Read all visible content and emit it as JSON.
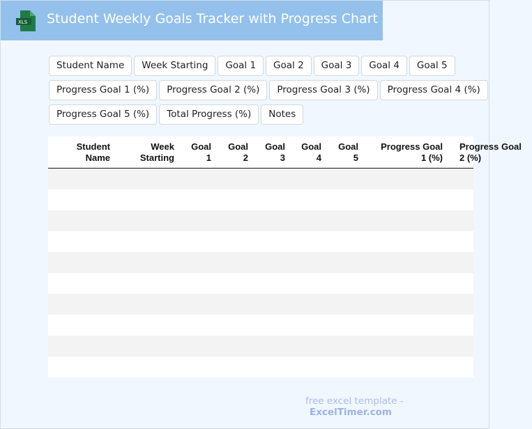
{
  "header": {
    "title": "Student Weekly Goals Tracker with Progress Chart",
    "logo_text": "XLS",
    "brand_color": "#93c1ec"
  },
  "fields": [
    "Student Name",
    "Week Starting",
    "Goal 1",
    "Goal 2",
    "Goal 3",
    "Goal 4",
    "Goal 5",
    "Progress Goal 1 (%)",
    "Progress Goal 2 (%)",
    "Progress Goal 3 (%)",
    "Progress Goal 4 (%)",
    "Progress Goal 5 (%)",
    "Total Progress (%)",
    "Notes"
  ],
  "table": {
    "columns": [
      [
        "Student",
        "Name"
      ],
      [
        "Week",
        "Starting"
      ],
      [
        "Goal",
        "1"
      ],
      [
        "Goal",
        "2"
      ],
      [
        "Goal",
        "3"
      ],
      [
        "Goal",
        "4"
      ],
      [
        "Goal",
        "5"
      ],
      [
        "Progress Goal",
        "1 (%)"
      ],
      [
        "Progress Goal",
        "2 (%)"
      ]
    ],
    "row_count": 10
  },
  "footer": {
    "text": "free excel template -",
    "brand": "ExcelTimer.com"
  }
}
